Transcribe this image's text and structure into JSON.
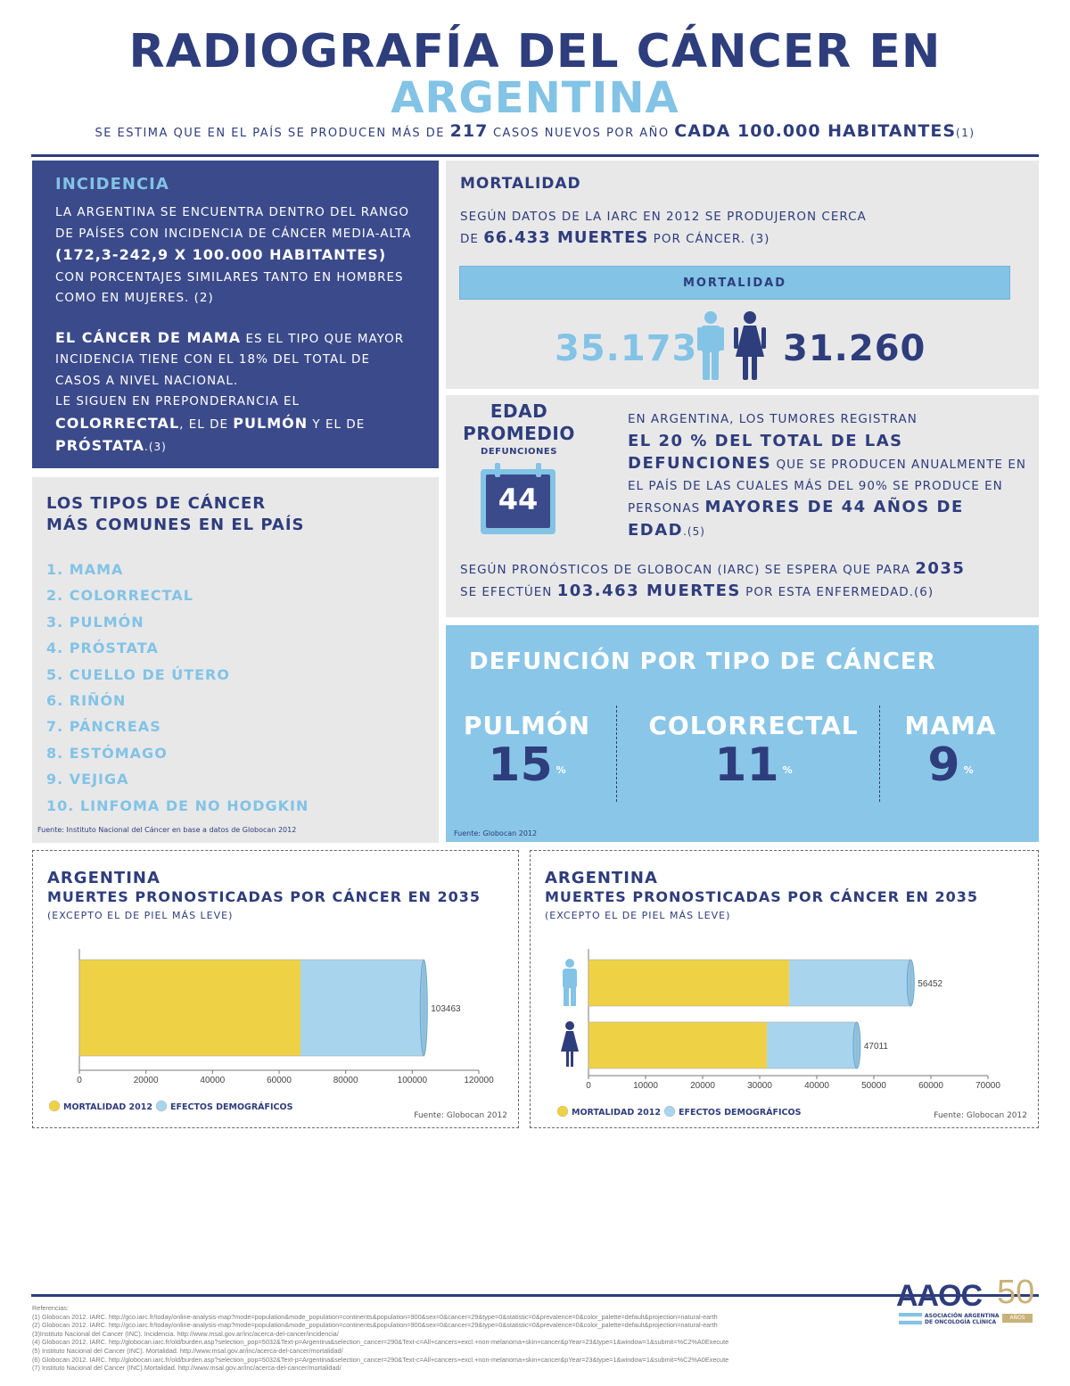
{
  "header": {
    "title_line1": "RADIOGRAFÍA DEL CÁNCER EN",
    "title_line2": "ARGENTINA",
    "sub_a": "SE ESTIMA QUE EN EL PAÍS SE PRODUCEN MÁS DE",
    "sub_num": "217",
    "sub_b": "CASOS NUEVOS POR AÑO",
    "sub_c": "CADA 100.000 HABITANTES",
    "sub_ref": "(1)"
  },
  "incidencia": {
    "title": "INCIDENCIA",
    "p1_a": "LA ARGENTINA SE ENCUENTRA DENTRO DEL RANGO DE PAÍSES CON INCIDENCIA DE CÁNCER MEDIA-ALTA",
    "p1_b": "(172,3-242,9 X 100.000 HABITANTES)",
    "p1_c": "CON PORCENTAJES SIMILARES TANTO EN HOMBRES COMO EN MUJERES. (2)",
    "p2_a": "EL CÁNCER DE MAMA",
    "p2_b": "ES EL TIPO QUE MAYOR INCIDENCIA TIENE CON EL 18% DEL TOTAL DE CASOS A NIVEL NACIONAL.",
    "p2_c": "LE SIGUEN EN PREPONDERANCIA EL",
    "p2_d": "COLORRECTAL",
    "p2_e": ", EL DE",
    "p2_f": "PULMÓN",
    "p2_g": "Y EL DE",
    "p2_h": "PRÓSTATA",
    "p2_ref": ".(3)"
  },
  "tipos": {
    "title1": "LOS TIPOS DE CÁNCER",
    "title2": "MÁS COMUNES EN EL PAÍS",
    "items": [
      "1. MAMA",
      "2. COLORRECTAL",
      "3. PULMÓN",
      "4. PRÓSTATA",
      "5. CUELLO DE ÚTERO",
      "6. RIÑÓN",
      "7. PÁNCREAS",
      "8. ESTÓMAGO",
      "9. VEJIGA",
      "10. LINFOMA DE NO HODGKIN"
    ],
    "source": "Fuente: Instituto Nacional del Cáncer en base a datos de Globocan 2012"
  },
  "mortalidad": {
    "title": "MORTALIDAD",
    "text_a": "SEGÚN DATOS DE LA IARC EN 2012 SE PRODUJERON CERCA",
    "text_b": "DE",
    "text_num": "66.433 MUERTES",
    "text_c": "POR CÁNCER. (3)",
    "bar_label": "MORTALIDAD",
    "male_value": "35.173",
    "female_value": "31.260"
  },
  "edad": {
    "title1": "EDAD",
    "title2": "PROMEDIO",
    "subtitle": "DEFUNCIONES",
    "calendar_value": "44",
    "t1": "EN ARGENTINA, LOS TUMORES REGISTRAN",
    "t2": "EL 20 % DEL TOTAL DE LAS DEFUNCIONES",
    "t3": "QUE SE PRODUCEN ANUALMENTE EN EL PAÍS DE LAS CUALES MÁS DEL 90% SE PRODUCE EN PERSONAS",
    "t4": "MAYORES DE 44 AÑOS DE EDAD",
    "t5": ".(5)",
    "f1": "SEGÚN PRONÓSTICOS DE GLOBOCAN (IARC) SE ESPERA QUE PARA",
    "f2": "2035",
    "f3": "SE EFECTÚEN",
    "f4": "103.463 MUERTES",
    "f5": "POR ESTA ENFERMEDAD.(6)"
  },
  "defuncion": {
    "title": "DEFUNCIÓN POR TIPO DE CÁNCER",
    "items": [
      {
        "name": "PULMÓN",
        "value": "15",
        "unit": "%"
      },
      {
        "name": "COLORRECTAL",
        "value": "11",
        "unit": "%"
      },
      {
        "name": "MAMA",
        "value": "9",
        "unit": "%"
      }
    ],
    "source": "Fuente: Globocan 2012"
  },
  "chart_data": [
    {
      "type": "bar",
      "orientation": "horizontal",
      "stacked": true,
      "title": "ARGENTINA",
      "subtitle": "MUERTES PRONOSTICADAS POR CÁNCER EN 2035",
      "note": "(EXCEPTO EL DE PIEL MÁS LEVE)",
      "categories": [
        ""
      ],
      "series": [
        {
          "name": "MORTALIDAD 2012",
          "values": [
            66433
          ],
          "color": "#efd145"
        },
        {
          "name": "EFECTOS DEMOGRÁFICOS",
          "values": [
            37030
          ],
          "color": "#a8d4ee"
        }
      ],
      "totals": [
        "103463"
      ],
      "xticks": [
        "0",
        "20000",
        "40000",
        "60000",
        "80000",
        "100000",
        "120000"
      ],
      "xlim": [
        0,
        120000
      ],
      "source": "Fuente: Globocan 2012"
    },
    {
      "type": "bar",
      "orientation": "horizontal",
      "stacked": true,
      "title": "ARGENTINA",
      "subtitle": "MUERTES PRONOSTICADAS POR CÁNCER EN 2035",
      "note": "(EXCEPTO EL DE PIEL MÁS LEVE)",
      "categories": [
        "male",
        "female"
      ],
      "series": [
        {
          "name": "MORTALIDAD 2012",
          "values": [
            35173,
            31260
          ],
          "color": "#efd145"
        },
        {
          "name": "EFECTOS DEMOGRÁFICOS",
          "values": [
            21279,
            15751
          ],
          "color": "#a8d4ee"
        }
      ],
      "totals": [
        "56452",
        "47011"
      ],
      "xticks": [
        "0",
        "10000",
        "20000",
        "30000",
        "40000",
        "50000",
        "60000",
        "70000"
      ],
      "xlim": [
        0,
        70000
      ],
      "source": "Fuente: Globocan 2012"
    }
  ],
  "references": {
    "heading": "Referencias:",
    "items": [
      "(1) Globocan 2012. IARC. http://gco.iarc.fr/today/online-analysis-map?mode=population&mode_population=continents&population=900&sex=0&cancer=29&type=0&statistic=0&prevalence=0&color_palette=default&projection=natural-earth",
      "(2) Globocan 2012. IARC. http://gco.iarc.fr/today/online-analysis-map?mode=population&mode_population=continents&population=900&sex=0&cancer=29&type=0&statistic=0&prevalence=0&color_palette=default&projection=natural-earth",
      "(3)Instituto Nacional del Cancer (INC). Incidencia. http://www.msal.gov.ar/inc/acerca-del-cancer/incidencia/",
      "(4) Globocan 2012. IARC. http://globocan.iarc.fr/old/burden.asp?selection_pop=5032&Text-p=Argentina&selection_cancer=290&Text-c=All+cancers+excl.+non-melanoma+skin+cancer&pYear=23&type=1&window=1&submit=%C2%A0Execute",
      "(5) Instituto Nacional del Cancer (INC). Mortalidad. http://www.msal.gov.ar/inc/acerca-del-cancer/mortalidad/",
      "(6) Globocan 2012. IARC. http://globocan.iarc.fr/old/burden.asp?selection_pop=5032&Text-p=Argentina&selection_cancer=290&Text-c=All+cancers+excl.+non-melanoma+skin+cancer&pYear=23&type=1&window=1&submit=%C2%A0Execute",
      "(7) Instituto Nacional del Cancer (INC).Mortalidad. http://www.msal.gov.ar/inc/acerca-del-cancer/mortalidad/"
    ]
  },
  "logo": {
    "text": "AAOC",
    "fifty": "50",
    "sub1": "ASOCIACIÓN ARGENTINA",
    "sub2": "DE ONCOLOGÍA CLÍNICA",
    "anos": "AÑOS"
  },
  "colors": {
    "navy": "#2e3d7c",
    "sky": "#82c3e6",
    "gray": "#e8e8e9",
    "yellow": "#efd145",
    "lightblue": "#a8d4ee"
  }
}
